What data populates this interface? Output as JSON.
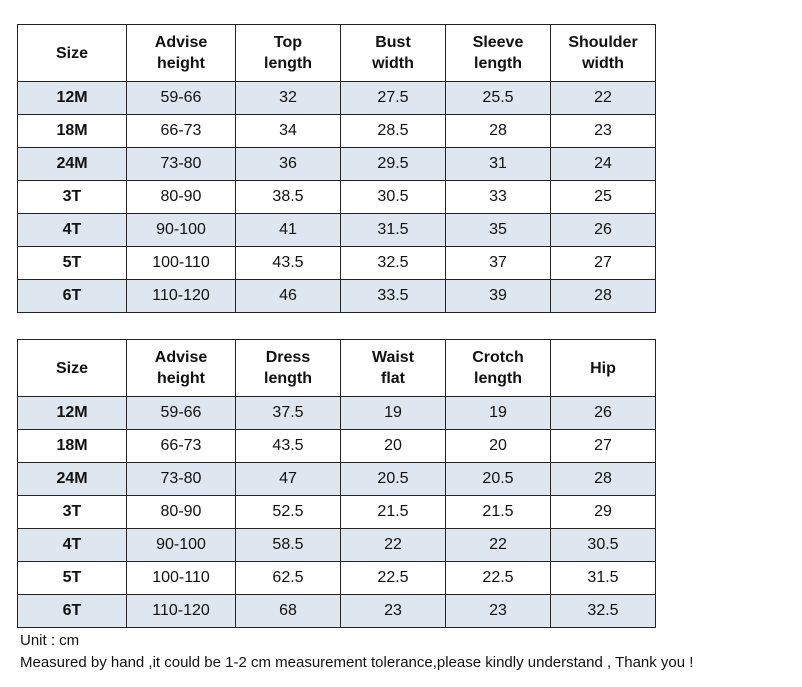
{
  "tables": [
    {
      "headers": [
        "Size",
        "Advise\nheight",
        "Top\nlength",
        "Bust\nwidth",
        "Sleeve\nlength",
        "Shoulder\nwidth"
      ],
      "rows": [
        [
          "12M",
          "59-66",
          "32",
          "27.5",
          "25.5",
          "22"
        ],
        [
          "18M",
          "66-73",
          "34",
          "28.5",
          "28",
          "23"
        ],
        [
          "24M",
          "73-80",
          "36",
          "29.5",
          "31",
          "24"
        ],
        [
          "3T",
          "80-90",
          "38.5",
          "30.5",
          "33",
          "25"
        ],
        [
          "4T",
          "90-100",
          "41",
          "31.5",
          "35",
          "26"
        ],
        [
          "5T",
          "100-110",
          "43.5",
          "32.5",
          "37",
          "27"
        ],
        [
          "6T",
          "110-120",
          "46",
          "33.5",
          "39",
          "28"
        ]
      ]
    },
    {
      "headers": [
        "Size",
        "Advise\nheight",
        "Dress\nlength",
        "Waist\nflat",
        "Crotch\nlength",
        "Hip"
      ],
      "rows": [
        [
          "12M",
          "59-66",
          "37.5",
          "19",
          "19",
          "26"
        ],
        [
          "18M",
          "66-73",
          "43.5",
          "20",
          "20",
          "27"
        ],
        [
          "24M",
          "73-80",
          "47",
          "20.5",
          "20.5",
          "28"
        ],
        [
          "3T",
          "80-90",
          "52.5",
          "21.5",
          "21.5",
          "29"
        ],
        [
          "4T",
          "90-100",
          "58.5",
          "22",
          "22",
          "30.5"
        ],
        [
          "5T",
          "100-110",
          "62.5",
          "22.5",
          "22.5",
          "31.5"
        ],
        [
          "6T",
          "110-120",
          "68",
          "23",
          "23",
          "32.5"
        ]
      ]
    }
  ],
  "notes": {
    "unit": "Unit : cm",
    "tolerance": "Measured by hand ,it could be 1-2 cm measurement tolerance,please kindly understand , Thank you !"
  },
  "colors": {
    "shaded_row": "#dee6ef",
    "plain_row": "#ffffff",
    "border": "#222222"
  }
}
